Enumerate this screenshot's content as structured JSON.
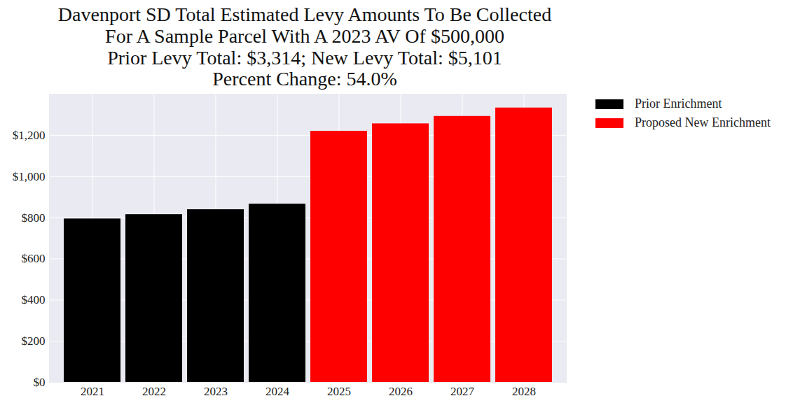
{
  "chart_data": {
    "type": "bar",
    "title": [
      "Davenport SD Total Estimated Levy Amounts To Be Collected",
      "For A Sample Parcel With A 2023 AV Of $500,000",
      "Prior Levy Total:  $3,314; New Levy Total: $5,101",
      "Percent Change: 54.0%"
    ],
    "categories": [
      "2021",
      "2022",
      "2023",
      "2024",
      "2025",
      "2026",
      "2027",
      "2028"
    ],
    "series": [
      {
        "name": "Prior Enrichment",
        "color": "#000000",
        "values": [
          794,
          815,
          839,
          866,
          null,
          null,
          null,
          null
        ]
      },
      {
        "name": "Proposed New Enrichment",
        "color": "#ff0000",
        "values": [
          null,
          null,
          null,
          null,
          1220,
          1256,
          1292,
          1333
        ]
      }
    ],
    "ylim": [
      0,
      1400
    ],
    "yticks": [
      {
        "value": 0,
        "label": "$0"
      },
      {
        "value": 200,
        "label": "$200"
      },
      {
        "value": 400,
        "label": "$400"
      },
      {
        "value": 600,
        "label": "$600"
      },
      {
        "value": 800,
        "label": "$800"
      },
      {
        "value": 1000,
        "label": "$1,000"
      },
      {
        "value": 1200,
        "label": "$1,200"
      }
    ],
    "grid": true,
    "legend": "upper right"
  }
}
